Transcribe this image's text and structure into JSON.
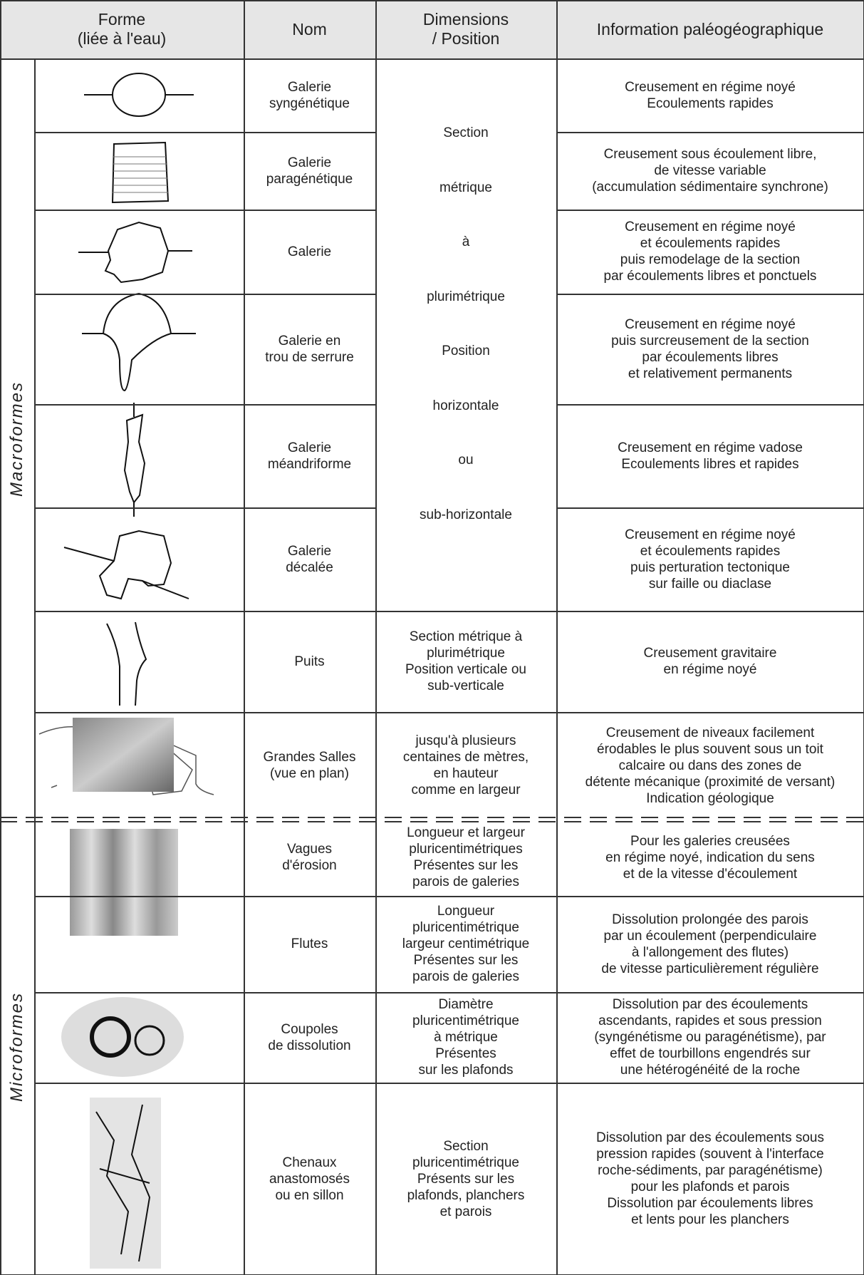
{
  "header": [
    [
      "Forme",
      "(liée à l'eau)"
    ],
    [
      "Nom"
    ],
    [
      "Dimensions",
      "/ Position"
    ],
    [
      "Information paléogéographique"
    ]
  ],
  "groups": [
    {
      "label": "Macroformes",
      "merged_dimensions": [
        "Section",
        "métrique",
        "à",
        "plurimétrique",
        "Position",
        "horizontale",
        "ou",
        "sub-horizontale"
      ],
      "rows": [
        {
          "nom": [
            "Galerie",
            "syngénétique"
          ],
          "information": [
            "Creusement en régime noyé",
            "Ecoulements rapides"
          ]
        },
        {
          "nom": [
            "Galerie",
            "paragénétique"
          ],
          "information": [
            "Creusement sous écoulement libre,",
            "de vitesse variable",
            "(accumulation sédimentaire synchrone)"
          ]
        },
        {
          "nom": [
            "Galerie"
          ],
          "information": [
            "Creusement en régime noyé",
            "et écoulements rapides",
            "puis remodelage de la section",
            "par écoulements libres et ponctuels"
          ]
        },
        {
          "nom": [
            "Galerie en",
            "trou de serrure"
          ],
          "information": [
            "Creusement en régime noyé",
            "puis surcreusement de la section",
            "par écoulements libres",
            "et relativement permanents"
          ]
        },
        {
          "nom": [
            "Galerie",
            "méandriforme"
          ],
          "information": [
            "Creusement en régime vadose",
            "Ecoulements libres et rapides"
          ]
        },
        {
          "nom": [
            "Galerie",
            "décalée"
          ],
          "information": [
            "Creusement en régime noyé",
            "et écoulements rapides",
            "puis perturation tectonique",
            "sur faille ou diaclase"
          ]
        },
        {
          "nom": [
            "Puits"
          ],
          "dimensions": [
            "Section métrique à",
            "plurimétrique",
            "Position verticale ou",
            "sub-verticale"
          ],
          "information": [
            "Creusement gravitaire",
            "en régime noyé"
          ]
        },
        {
          "nom": [
            "Grandes Salles",
            "(vue en plan)"
          ],
          "dimensions": [
            "jusqu'à plusieurs",
            "centaines de mètres,",
            "en hauteur",
            "comme en largeur"
          ],
          "information": [
            "Creusement de niveaux facilement",
            "érodables le plus souvent sous un toit",
            "calcaire ou dans des zones de",
            "détente mécanique (proximité de versant)",
            "Indication géologique"
          ]
        }
      ]
    },
    {
      "label": "Microformes",
      "rows": [
        {
          "nom": [
            "Vagues",
            "d'érosion"
          ],
          "dimensions": [
            "Longueur et largeur",
            "pluricentimétriques",
            "Présentes sur les",
            "parois de galeries"
          ],
          "information": [
            "Pour les galeries creusées",
            "en régime noyé, indication du sens",
            "et de la vitesse d'écoulement"
          ]
        },
        {
          "nom": [
            "Flutes"
          ],
          "dimensions": [
            "Longueur",
            "pluricentimétrique",
            "largeur centimétrique",
            "Présentes sur les",
            "parois de galeries"
          ],
          "information": [
            "Dissolution prolongée des parois",
            "par un écoulement (perpendiculaire",
            "à l'allongement des flutes)",
            "de vitesse particulièrement régulière"
          ]
        },
        {
          "nom": [
            "Coupoles",
            "de dissolution"
          ],
          "dimensions": [
            "Diamètre",
            "pluricentimétrique",
            "à métrique",
            "Présentes",
            "sur les plafonds"
          ],
          "information": [
            "Dissolution par des écoulements",
            "ascendants, rapides et sous pression",
            "(syngénétisme ou paragénétisme), par",
            "effet de tourbillons engendrés sur",
            "une hétérogénéité de la roche"
          ]
        },
        {
          "nom": [
            "Chenaux",
            "anastomosés",
            "ou en sillon"
          ],
          "dimensions": [
            "Section",
            "pluricentimétrique",
            "Présents sur les",
            "plafonds, planchers",
            "et parois"
          ],
          "information": [
            "Dissolution par des écoulements sous",
            "pression rapides (souvent à l'interface",
            "roche-sédiments, par paragénétisme)",
            "pour les plafonds et parois",
            "Dissolution par écoulements libres",
            "et lents pour les planchers"
          ]
        }
      ]
    }
  ]
}
